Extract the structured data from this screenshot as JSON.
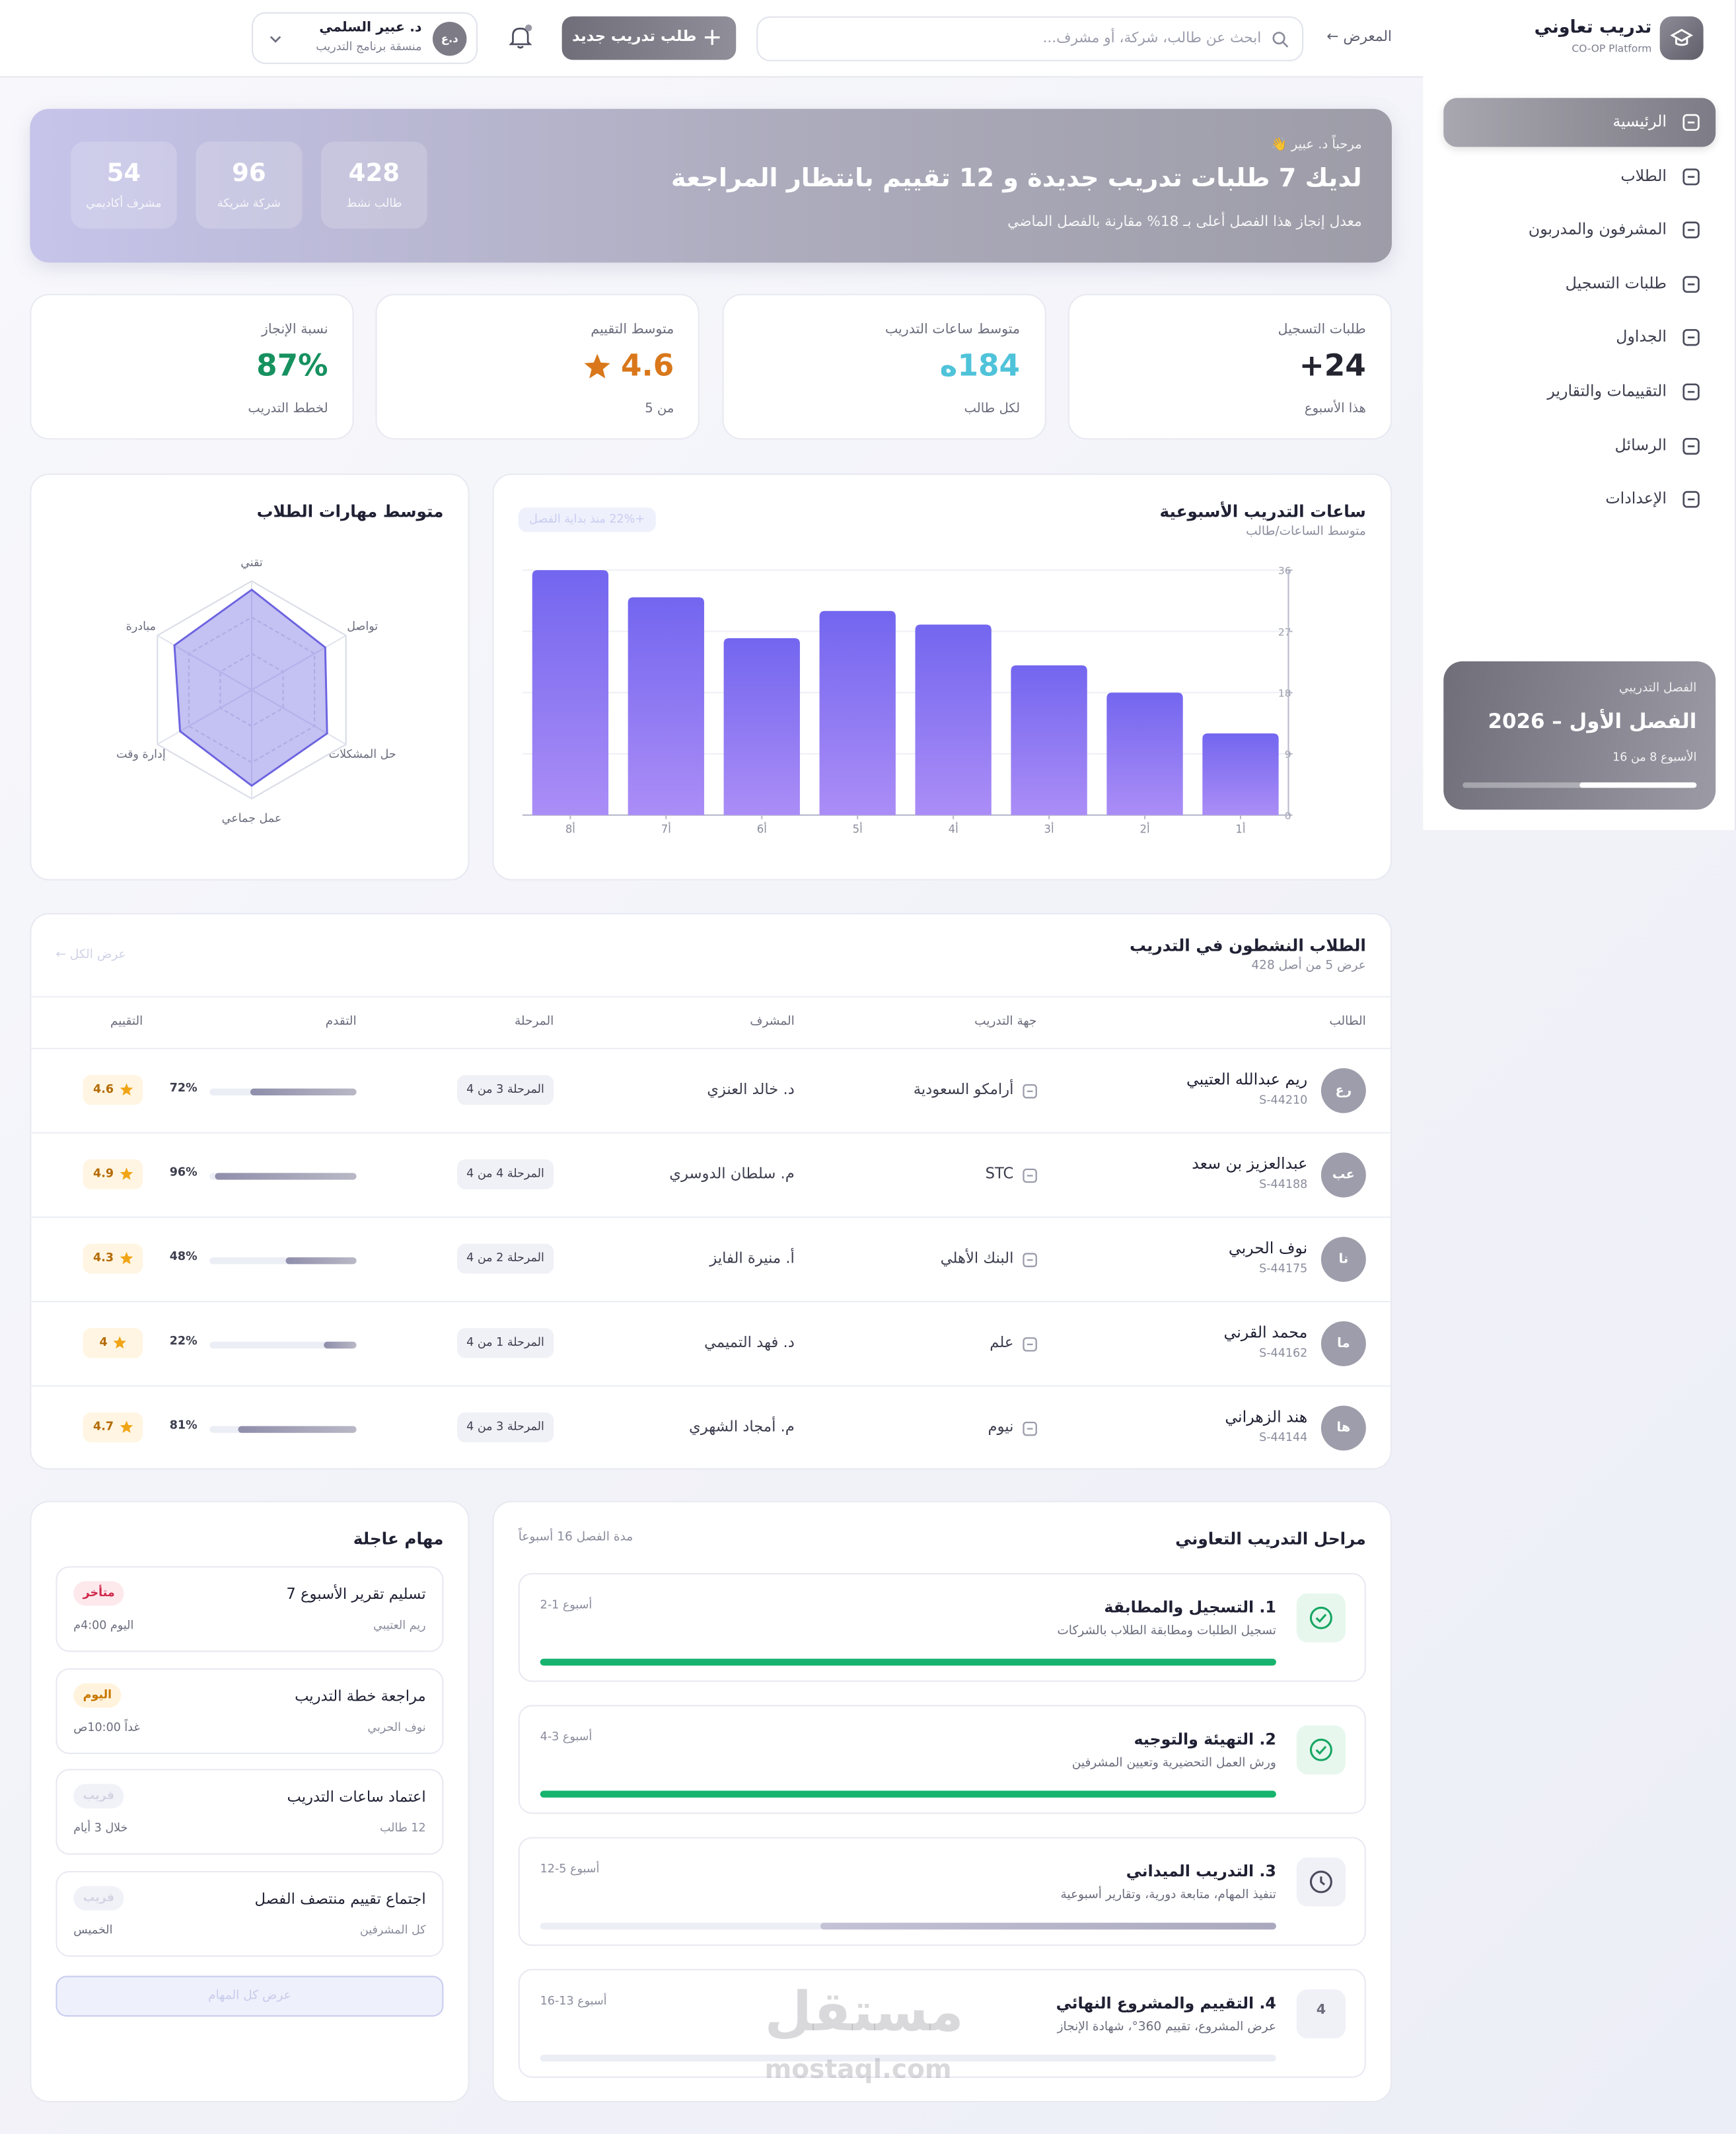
{
  "sidebar": {
    "brand": "تدريب تعاوني",
    "brand_sub": "CO-OP Platform",
    "nav": [
      "الرئيسية",
      "الطلاب",
      "المشرفون والمدربون",
      "طلبات التسجيل",
      "الجداول",
      "التقييمات والتقارير",
      "الرسائل",
      "الإعدادات"
    ],
    "active": 0,
    "semester": {
      "label": "الفصل التدريبي",
      "title": "الفصل الأول – 2026",
      "week": "الأسبوع 8 من 16",
      "progress": 50
    }
  },
  "topbar": {
    "breadcrumb": "المعرض ←",
    "search_placeholder": "ابحث عن طالب، شركة، أو مشرف...",
    "new_button": "طلب تدريب جديد",
    "user": {
      "initials": "د.ع",
      "name": "د. عبير السلمي",
      "role": "منسقة برنامج التدريب"
    }
  },
  "hero": {
    "greeting": "مرحباً د. عبير 👋",
    "headline": "لديك 7 طلبات تدريب جديدة و 12 تقييم بانتظار المراجعة",
    "note": "معدل إنجاز هذا الفصل أعلى بـ 18% مقارنة بالفصل الماضي",
    "stats": [
      {
        "value": 428,
        "label": "طالب نشط"
      },
      {
        "value": 96,
        "label": "شركة شريكة"
      },
      {
        "value": 54,
        "label": "مشرف أكاديمي"
      }
    ]
  },
  "kpis": [
    {
      "label": "طلبات التسجيل",
      "value": "24+",
      "sub": "هذا الأسبوع",
      "color": "#23242f"
    },
    {
      "label": "متوسط ساعات التدريب",
      "value": "184ه",
      "sub": "لكل طالب",
      "color": "#4fc3d9"
    },
    {
      "label": "متوسط التقييم",
      "value": 4.6,
      "sub": "من 5",
      "color": "#d9771a",
      "star": true
    },
    {
      "label": "نسبة الإنجاز",
      "value": "87%",
      "sub": "لخطط التدريب",
      "color": "#16915f"
    }
  ],
  "weekly_chart": {
    "type": "bar",
    "title": "ساعات التدريب الأسبوعية",
    "subtitle": "متوسط الساعات/طالب",
    "badge": "+22% منذ بداية الفصل",
    "categories": [
      "أ1",
      "أ2",
      "أ3",
      "أ4",
      "أ5",
      "أ6",
      "أ7",
      "أ8"
    ],
    "values": [
      12,
      18,
      22,
      28,
      30,
      26,
      32,
      36
    ],
    "color": "#7366ef",
    "ylim": [
      0,
      36
    ],
    "yticks": [
      0,
      9,
      18,
      27,
      36
    ],
    "grid": true
  },
  "skills_chart": {
    "type": "radar",
    "title": "متوسط مهارات الطلاب",
    "axes": [
      "تقني",
      "تواصل",
      "حل المشكلات",
      "عمل جماعي",
      "إدارة وقت",
      "مبادرة"
    ],
    "values": [
      92,
      78,
      80,
      88,
      76,
      82
    ],
    "rlim": [
      0,
      100
    ],
    "color": "#6b63e0"
  },
  "students_table": {
    "title": "الطلاب النشطون في التدريب",
    "subtitle": "عرض 5 من أصل 428",
    "view_all": "عرض الكل ←",
    "columns": [
      "الطالب",
      "جهة التدريب",
      "المشرف",
      "المرحلة",
      "التقدم",
      "التقييم"
    ],
    "rows": [
      {
        "initials": "رع",
        "name": "ريم عبدالله العتيبي",
        "id": "S-44210",
        "company": "أرامكو السعودية",
        "supervisor": "د. خالد العنزي",
        "stage": "المرحلة 3 من 4",
        "progress": 72,
        "progress_label": "72%",
        "rating": 4.6
      },
      {
        "initials": "عب",
        "name": "عبدالعزيز بن سعد",
        "id": "S-44188",
        "company": "STC",
        "supervisor": "م. سلطان الدوسري",
        "stage": "المرحلة 4 من 4",
        "progress": 96,
        "progress_label": "96%",
        "rating": 4.9
      },
      {
        "initials": "نا",
        "name": "نوف الحربي",
        "id": "S-44175",
        "company": "البنك الأهلي",
        "supervisor": "أ. منيرة الفايز",
        "stage": "المرحلة 2 من 4",
        "progress": 48,
        "progress_label": "48%",
        "rating": 4.3
      },
      {
        "initials": "ما",
        "name": "محمد القرني",
        "id": "S-44162",
        "company": "علم",
        "supervisor": "د. فهد التميمي",
        "stage": "المرحلة 1 من 4",
        "progress": 22,
        "progress_label": "22%",
        "rating": 4
      },
      {
        "initials": "ها",
        "name": "هند الزهراني",
        "id": "S-44144",
        "company": "نيوم",
        "supervisor": "م. أمجاد الشهري",
        "stage": "المرحلة 3 من 4",
        "progress": 81,
        "progress_label": "81%",
        "rating": 4.7
      }
    ]
  },
  "stages": {
    "title": "مراحل التدريب التعاوني",
    "note": "مدة الفصل 16 أسبوعاً",
    "items": [
      {
        "title": "1. التسجيل والمطابقة",
        "desc": "تسجيل الطلبات ومطابقة الطلاب بالشركات",
        "weeks": "أسبوع 1-2",
        "progress": 100,
        "status": "done"
      },
      {
        "title": "2. التهيئة والتوجيه",
        "desc": "ورش العمل التحضيرية وتعيين المشرفين",
        "weeks": "أسبوع 3-4",
        "progress": 100,
        "status": "done"
      },
      {
        "title": "3. التدريب الميداني",
        "desc": "تنفيذ المهام، متابعة دورية، وتقارير أسبوعية",
        "weeks": "أسبوع 5-12",
        "progress": 62,
        "status": "current"
      },
      {
        "title": "4. التقييم والمشروع النهائي",
        "desc": "عرض المشروع، تقييم 360°، شهادة الإنجاز",
        "weeks": "أسبوع 13-16",
        "progress": 0,
        "status": "pending",
        "badge": "4"
      }
    ]
  },
  "tasks": {
    "title": "مهام عاجلة",
    "items": [
      {
        "title": "تسليم تقرير الأسبوع 7",
        "who": "ريم العتيبي",
        "badge": "متأخر",
        "tone": "late",
        "due": "اليوم 4:00م"
      },
      {
        "title": "مراجعة خطة التدريب",
        "who": "نوف الحربي",
        "badge": "اليوم",
        "tone": "today",
        "due": "غداً 10:00ص"
      },
      {
        "title": "اعتماد ساعات التدريب",
        "who": "12 طالب",
        "badge": "قريب",
        "tone": "soon",
        "due": "خلال 3 أيام"
      },
      {
        "title": "اجتماع تقييم منتصف الفصل",
        "who": "كل المشرفين",
        "badge": "قريب",
        "tone": "soon",
        "due": "الخميس"
      }
    ],
    "button": "عرض كل المهام"
  },
  "watermark": {
    "ar": "مستقل",
    "en": "mostaql.com"
  }
}
